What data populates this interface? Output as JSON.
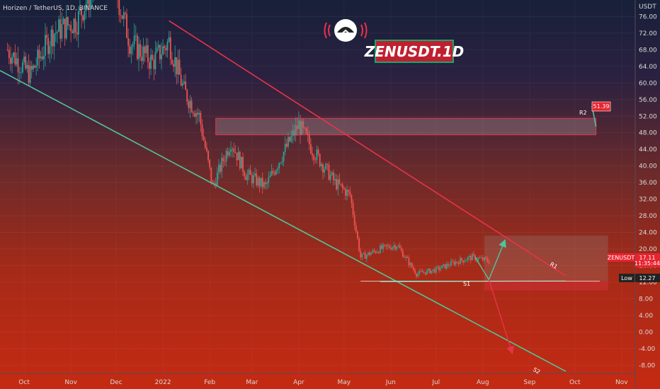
{
  "header": {
    "symbol_line": "Horizen / TetherUS, 1D, BINANCE",
    "currency": "USDT"
  },
  "watermark": {
    "title": "ZENUSDT.1D",
    "logo_icon": "robot-head-icon"
  },
  "colors": {
    "background_top": "#17203a",
    "background_bottom": "#c52a12",
    "up_candle": "#26a69a",
    "down_candle": "#ef5350",
    "resistance_line": "#e8334a",
    "support_line": "#4fc39b",
    "arrow_up": "#4fc39b",
    "arrow_down": "#e8334a"
  },
  "annotations": {
    "r1": "R1",
    "r2": "R2",
    "s1": "S1",
    "s2": "S2",
    "r2_price": "51.39",
    "symbol_tag": "ZENUSDT",
    "price_tag": "17.11",
    "countdown_tag": "11:35:44",
    "low_label": "Low",
    "low_value": "12.27"
  },
  "chart_data": {
    "type": "candlestick",
    "title": "ZENUSDT.1D",
    "xlabel": "",
    "ylabel": "USDT",
    "ylim": [
      -10,
      80
    ],
    "y_ticks": [
      {
        "value": 76,
        "label": "76.00"
      },
      {
        "value": 72,
        "label": "72.00"
      },
      {
        "value": 68,
        "label": "68.00"
      },
      {
        "value": 64,
        "label": "64.00"
      },
      {
        "value": 60,
        "label": "60.00"
      },
      {
        "value": 56,
        "label": "56.00"
      },
      {
        "value": 52,
        "label": "52.00"
      },
      {
        "value": 48,
        "label": "48.00"
      },
      {
        "value": 44,
        "label": "44.00"
      },
      {
        "value": 40,
        "label": "40.00"
      },
      {
        "value": 36,
        "label": "36.00"
      },
      {
        "value": 32,
        "label": "32.00"
      },
      {
        "value": 28,
        "label": "28.00"
      },
      {
        "value": 24,
        "label": "24.00"
      },
      {
        "value": 20,
        "label": "20.00"
      },
      {
        "value": 16,
        "label": "16.00"
      },
      {
        "value": 12,
        "label": "12.00"
      },
      {
        "value": 8,
        "label": "8.00"
      },
      {
        "value": 4,
        "label": "4.00"
      },
      {
        "value": 0,
        "label": "0.00"
      },
      {
        "value": -4,
        "label": "-4.00"
      },
      {
        "value": -8,
        "label": "-8.00"
      }
    ],
    "x_ticks": [
      {
        "date": "2021-10-01",
        "label": "Oct"
      },
      {
        "date": "2021-11-01",
        "label": "Nov"
      },
      {
        "date": "2021-12-01",
        "label": "Dec"
      },
      {
        "date": "2022-01-01",
        "label": "2022"
      },
      {
        "date": "2022-02-01",
        "label": "Feb"
      },
      {
        "date": "2022-03-01",
        "label": "Mar"
      },
      {
        "date": "2022-04-01",
        "label": "Apr"
      },
      {
        "date": "2022-05-01",
        "label": "May"
      },
      {
        "date": "2022-06-01",
        "label": "Jun"
      },
      {
        "date": "2022-07-01",
        "label": "Jul"
      },
      {
        "date": "2022-08-01",
        "label": "Aug"
      },
      {
        "date": "2022-09-01",
        "label": "Sep"
      },
      {
        "date": "2022-10-01",
        "label": "Oct"
      },
      {
        "date": "2022-11-01",
        "label": "Nov"
      }
    ],
    "x_range": [
      "2021-09-15",
      "2022-11-10"
    ],
    "price_path": [
      {
        "date": "2021-09-20",
        "value": 68
      },
      {
        "date": "2021-10-05",
        "value": 62
      },
      {
        "date": "2021-10-20",
        "value": 72
      },
      {
        "date": "2021-11-05",
        "value": 75
      },
      {
        "date": "2021-11-25",
        "value": 90
      },
      {
        "date": "2021-12-10",
        "value": 70
      },
      {
        "date": "2021-12-25",
        "value": 65
      },
      {
        "date": "2022-01-05",
        "value": 70
      },
      {
        "date": "2022-01-15",
        "value": 58
      },
      {
        "date": "2022-01-25",
        "value": 52
      },
      {
        "date": "2022-02-03",
        "value": 35
      },
      {
        "date": "2022-02-15",
        "value": 46
      },
      {
        "date": "2022-02-25",
        "value": 38
      },
      {
        "date": "2022-03-10",
        "value": 35
      },
      {
        "date": "2022-03-20",
        "value": 42
      },
      {
        "date": "2022-04-01",
        "value": 50
      },
      {
        "date": "2022-04-10",
        "value": 44
      },
      {
        "date": "2022-04-25",
        "value": 36
      },
      {
        "date": "2022-05-05",
        "value": 33
      },
      {
        "date": "2022-05-12",
        "value": 18
      },
      {
        "date": "2022-05-25",
        "value": 20
      },
      {
        "date": "2022-06-05",
        "value": 21
      },
      {
        "date": "2022-06-18",
        "value": 14
      },
      {
        "date": "2022-07-01",
        "value": 15
      },
      {
        "date": "2022-07-15",
        "value": 17
      },
      {
        "date": "2022-07-25",
        "value": 18
      },
      {
        "date": "2022-08-05",
        "value": 17.1
      }
    ],
    "levels": [
      {
        "name": "R2",
        "value": 51.39
      },
      {
        "name": "Low",
        "value": 12.27
      },
      {
        "name": "Current",
        "value": 17.11
      }
    ],
    "zones": [
      {
        "label": "R2",
        "from": "2022-02-05",
        "to": "2022-10-15",
        "ymin": 47.5,
        "ymax": 51.5
      },
      {
        "label": "",
        "from": "2022-08-02",
        "to": "2022-10-23",
        "ymin": 12.3,
        "ymax": 23.2
      },
      {
        "label": "",
        "from": "2022-08-02",
        "to": "2022-10-23",
        "ymin": 10,
        "ymax": 12.3
      }
    ],
    "trendlines": [
      {
        "name": "R1",
        "points": [
          {
            "date": "2022-01-05",
            "value": 75
          },
          {
            "date": "2022-09-25",
            "value": 13.5
          }
        ]
      },
      {
        "name": "S2",
        "points": [
          {
            "date": "2021-09-15",
            "value": 63
          },
          {
            "date": "2022-09-25",
            "value": -9.5
          }
        ]
      },
      {
        "name": "S1",
        "points": [
          {
            "date": "2022-05-25",
            "value": 12.1
          },
          {
            "date": "2022-09-25",
            "value": 12.3
          }
        ]
      }
    ],
    "arrows": [
      {
        "direction": "up",
        "points": [
          {
            "date": "2022-07-27",
            "value": 18
          },
          {
            "date": "2022-08-05",
            "value": 12.6
          },
          {
            "date": "2022-08-15",
            "value": 21.5
          }
        ]
      },
      {
        "direction": "down",
        "points": [
          {
            "date": "2022-08-05",
            "value": 12.6
          },
          {
            "date": "2022-08-20",
            "value": -4.5
          }
        ]
      }
    ]
  }
}
